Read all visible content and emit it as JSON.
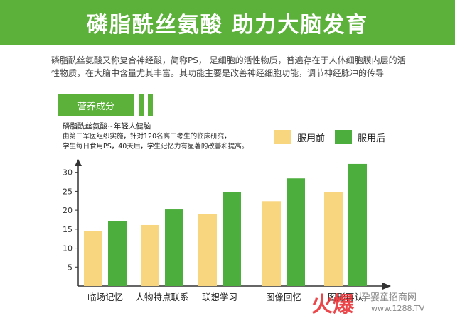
{
  "banner": {
    "title": "磷脂酰丝氨酸 助力大脑发育"
  },
  "intro": {
    "text": "磷脂酰丝氨酸又称复合神经酸，简称PS， 是细胞的活性物质，普遍存在于人体细胞膜内层的活性物质，在大脑中含量尤其丰富。其功能主要是改善神经细胞功能，调节神经脉冲的传导"
  },
  "section": {
    "label": "营养成分"
  },
  "chart_meta": {
    "title": "磷脂酰丝氨酸~年轻人健脑",
    "desc_line1": "由第三军医组织实施，针对120名高三考生的临床研究，",
    "desc_line2": "学生每日食用PS，40天后，学生记忆力有显著的改善和提高。"
  },
  "colors": {
    "before": "#f8d680",
    "after": "#4cae3c",
    "banner": "#5cb13a"
  },
  "chart_data": {
    "type": "bar",
    "categories": [
      "临场记忆",
      "人物特点联系",
      "联想学习",
      "图像回忆",
      "图形再认"
    ],
    "series": [
      {
        "name": "服用前",
        "values": [
          14.5,
          16.1,
          19.0,
          22.4,
          24.7
        ]
      },
      {
        "name": "服用后",
        "values": [
          17.1,
          20.2,
          24.7,
          28.4,
          32.2
        ]
      }
    ],
    "yticks": [
      5,
      10,
      15,
      20,
      25,
      30
    ],
    "ylim": [
      0,
      32
    ],
    "legend": "top-right",
    "grid": false
  },
  "watermark": {
    "brand": "火爆",
    "text": "孕婴童招商网",
    "url": "www.1288.TV"
  }
}
